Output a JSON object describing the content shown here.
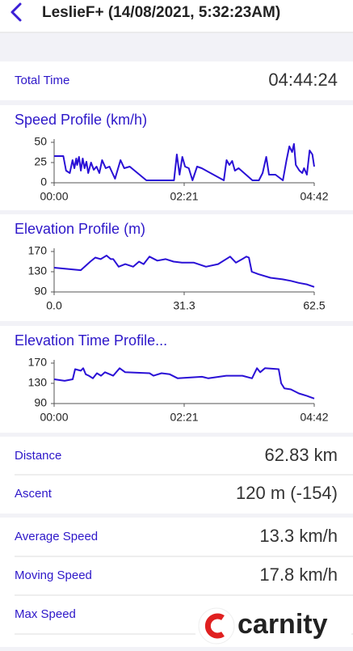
{
  "header": {
    "title": "LeslieF+ (14/08/2021, 5:32:23AM)"
  },
  "total_time": {
    "label": "Total Time",
    "value": "04:44:24"
  },
  "stats": [
    {
      "label": "Distance",
      "value": "62.83 km"
    },
    {
      "label": "Ascent",
      "value": "120 m (-154)"
    },
    {
      "label": "Average Speed",
      "value": "13.3 km/h"
    },
    {
      "label": "Moving Speed",
      "value": "17.8 km/h"
    },
    {
      "label": "Max Speed",
      "value": null
    }
  ],
  "watermark": "carnity",
  "chart_data": [
    {
      "type": "line",
      "title": "Speed Profile (km/h)",
      "color": "#2a10d6",
      "x": [
        0,
        10,
        13,
        17,
        20,
        22,
        24,
        25,
        27,
        29,
        31,
        33,
        35,
        37,
        40,
        43,
        46,
        49,
        52,
        56,
        60,
        66,
        72,
        76,
        82,
        100,
        130,
        133,
        136,
        139,
        142,
        146,
        150,
        155,
        160,
        184,
        187,
        190,
        193,
        196,
        200,
        215,
        222,
        226,
        230,
        233,
        240,
        248,
        252,
        255,
        258,
        260,
        262,
        266,
        269,
        271,
        274,
        277,
        280,
        282
      ],
      "values": [
        33,
        33,
        15,
        12,
        28,
        18,
        30,
        22,
        32,
        15,
        30,
        18,
        26,
        12,
        25,
        16,
        20,
        12,
        28,
        18,
        20,
        5,
        28,
        18,
        20,
        3,
        3,
        35,
        10,
        32,
        20,
        18,
        3,
        20,
        18,
        3,
        28,
        22,
        27,
        15,
        18,
        3,
        3,
        12,
        32,
        10,
        10,
        3,
        28,
        45,
        38,
        48,
        22,
        15,
        12,
        18,
        10,
        40,
        35,
        20
      ],
      "xlim": [
        0,
        282
      ],
      "ylim": [
        0,
        50
      ],
      "xticks": [
        {
          "value": 0,
          "label": "00:00"
        },
        {
          "value": 141,
          "label": "02:21"
        },
        {
          "value": 282,
          "label": "04:42"
        }
      ],
      "yticks": [
        0,
        25,
        50
      ]
    },
    {
      "type": "line",
      "title": "Elevation Profile (m)",
      "color": "#2a10d6",
      "x": [
        0,
        6.4,
        8.7,
        9.9,
        11.2,
        12.6,
        13.6,
        14.2,
        15.5,
        17.1,
        19.0,
        20.4,
        21.5,
        22.9,
        24.8,
        26.8,
        28.7,
        30.7,
        33.6,
        36.5,
        39.4,
        42.3,
        43.7,
        45.2,
        46.2,
        46.8,
        47.5,
        49.1,
        52.0,
        54.9,
        56.9,
        58.8,
        60.7,
        62.5
      ],
      "values": [
        138,
        133,
        150,
        158,
        155,
        162,
        155,
        155,
        140,
        145,
        140,
        150,
        145,
        160,
        152,
        155,
        150,
        148,
        148,
        140,
        145,
        160,
        148,
        155,
        160,
        158,
        130,
        125,
        118,
        115,
        112,
        108,
        105,
        100
      ],
      "xlim": [
        0,
        62.5
      ],
      "ylim": [
        90,
        170
      ],
      "xticks": [
        {
          "value": 0,
          "label": "0.0"
        },
        {
          "value": 31.25,
          "label": "31.3"
        },
        62.5
      ],
      "yticks": [
        90,
        130,
        170
      ]
    },
    {
      "type": "line",
      "title": "Elevation Time Profile...",
      "color": "#2a10d6",
      "x": [
        0,
        11.4,
        20.1,
        22.8,
        28.9,
        31.5,
        34.2,
        37.7,
        42.0,
        46.4,
        50.8,
        55.2,
        64.0,
        71.0,
        77.1,
        103.4,
        107.8,
        116.5,
        125.3,
        134.0,
        160.3,
        167.3,
        186.6,
        204.1,
        214.6,
        219.9,
        223.4,
        228.6,
        243.5,
        246.2,
        249.7,
        256.7,
        265.4,
        274.2,
        282
      ],
      "values": [
        138,
        135,
        138,
        158,
        155,
        160,
        148,
        145,
        140,
        150,
        145,
        152,
        145,
        160,
        152,
        150,
        145,
        150,
        148,
        140,
        143,
        140,
        145,
        145,
        140,
        160,
        152,
        160,
        158,
        130,
        120,
        118,
        110,
        105,
        100
      ],
      "xlim": [
        0,
        282
      ],
      "ylim": [
        90,
        170
      ],
      "xticks": [
        {
          "value": 0,
          "label": "00:00"
        },
        {
          "value": 141,
          "label": "02:21"
        },
        {
          "value": 282,
          "label": "04:42"
        }
      ],
      "yticks": [
        90,
        130,
        170
      ]
    }
  ]
}
